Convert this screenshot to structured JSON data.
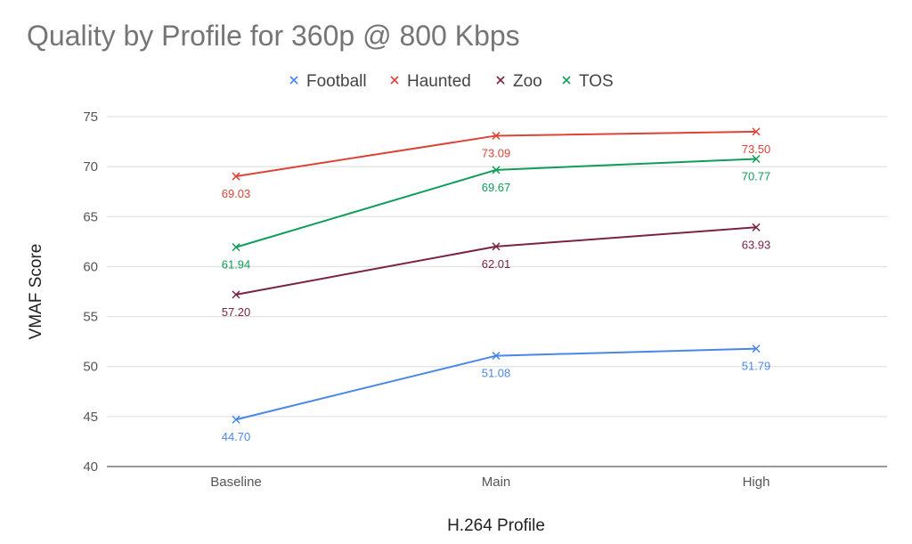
{
  "chart_data": {
    "type": "line",
    "title": "Quality by Profile for 360p @ 800 Kbps",
    "xlabel": "H.264 Profile",
    "ylabel": "VMAF Score",
    "categories": [
      "Baseline",
      "Main",
      "High"
    ],
    "ylim": [
      40,
      75
    ],
    "yticks": [
      40,
      45,
      50,
      55,
      60,
      65,
      70,
      75
    ],
    "grid": true,
    "legend_position": "top",
    "series": [
      {
        "name": "Football",
        "color": "#4a86e8",
        "values": [
          44.7,
          51.08,
          51.79
        ],
        "labels": [
          "44.70",
          "51.08",
          "51.79"
        ]
      },
      {
        "name": "Haunted",
        "color": "#db4437",
        "values": [
          69.03,
          73.09,
          73.5
        ],
        "labels": [
          "69.03",
          "73.09",
          "73.50"
        ]
      },
      {
        "name": "Zoo",
        "color": "#7b2346",
        "values": [
          57.2,
          62.01,
          63.93
        ],
        "labels": [
          "57.20",
          "62.01",
          "63.93"
        ]
      },
      {
        "name": "TOS",
        "color": "#0f9d58",
        "values": [
          61.94,
          69.67,
          70.77
        ],
        "labels": [
          "61.94",
          "69.67",
          "70.77"
        ]
      }
    ]
  }
}
